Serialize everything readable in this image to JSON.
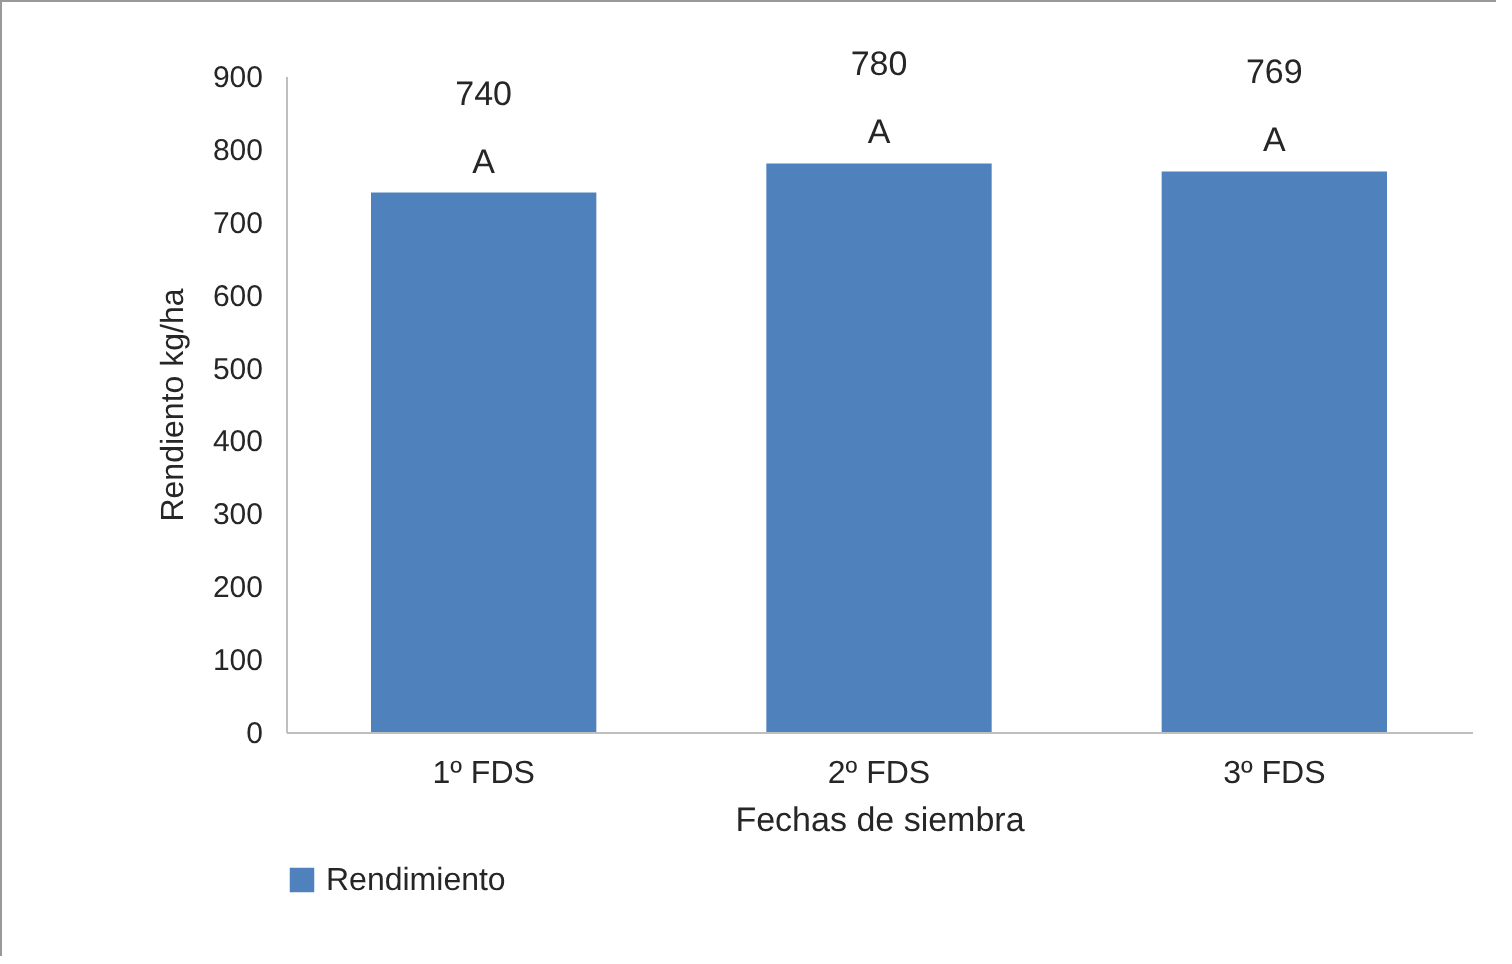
{
  "chart_data": {
    "type": "bar",
    "xlabel": "Fechas de siembra",
    "ylabel": "Rendiento kg/ha",
    "categories": [
      "1º FDS",
      "2º FDS",
      "3º FDS"
    ],
    "series": [
      {
        "name": "Rendimiento",
        "color": "#4f81bd",
        "values": [
          740,
          780,
          769
        ]
      }
    ],
    "ylim": [
      0,
      900
    ],
    "yticks": [
      0,
      100,
      200,
      300,
      400,
      500,
      600,
      700,
      800,
      900
    ],
    "data_labels": true,
    "legend": "bottom",
    "annotations": [
      {
        "text": "A",
        "x": "1º FDS",
        "y": 740
      },
      {
        "text": "A",
        "x": "2º FDS",
        "y": 780
      },
      {
        "text": "A",
        "x": "3º FDS",
        "y": 769
      }
    ]
  }
}
